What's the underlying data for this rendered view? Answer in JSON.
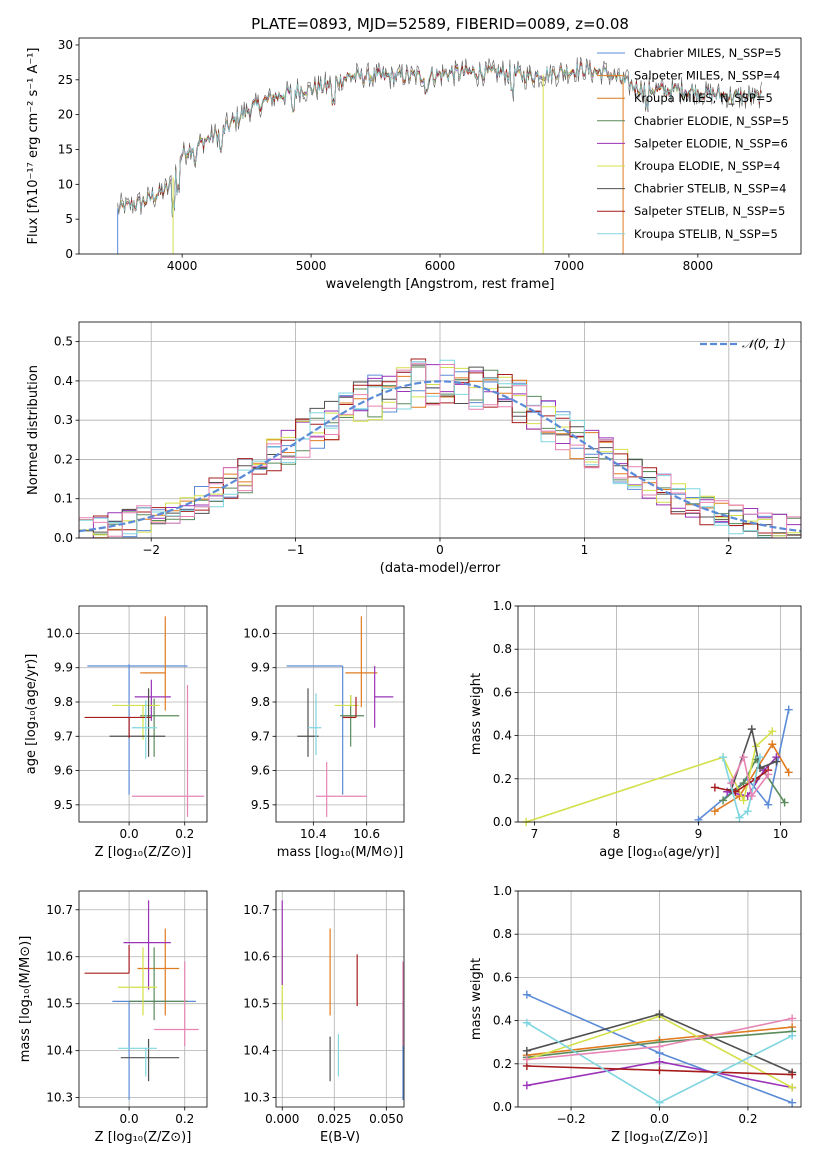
{
  "title": "PLATE=0893, MJD=52589, FIBERID=0089, z=0.08",
  "colors": {
    "chabrier_miles": "#5b8bd6",
    "salpeter_miles": "#e07b20",
    "kroupa_miles": "#d97a1e",
    "chabrier_elodie": "#5a8a5a",
    "salpeter_elodie": "#9a33b8",
    "kroupa_elodie": "#d4e04a",
    "chabrier_stelib": "#505050",
    "salpeter_stelib": "#a61c1c",
    "kroupa_stelib": "#7fd6e0",
    "pink": "#e684b4",
    "normal_curve": "#5b8bd6"
  },
  "chart_data": [
    {
      "id": "spectrum",
      "type": "line",
      "xlabel": "wavelength [Angstrom, rest frame]",
      "ylabel": "Flux [fλ10⁻¹⁷ erg cm⁻² s⁻¹ A⁻¹]",
      "xlim": [
        3200,
        8800
      ],
      "ylim": [
        0,
        31
      ],
      "xticks": [
        "4000",
        "5000",
        "6000",
        "7000",
        "8000"
      ],
      "yticks": [
        "0",
        "5",
        "10",
        "15",
        "20",
        "25",
        "30"
      ],
      "legend_position": "top-right",
      "continuum": [
        [
          3500,
          6.5
        ],
        [
          3700,
          7.5
        ],
        [
          3900,
          9.5
        ],
        [
          3950,
          12
        ],
        [
          4000,
          14.5
        ],
        [
          4100,
          15.5
        ],
        [
          4300,
          17.5
        ],
        [
          4500,
          20.5
        ],
        [
          4700,
          22.5
        ],
        [
          4900,
          23.5
        ],
        [
          5100,
          24
        ],
        [
          5300,
          25.5
        ],
        [
          5500,
          25.5
        ],
        [
          5700,
          25.5
        ],
        [
          5900,
          25.5
        ],
        [
          6100,
          26
        ],
        [
          6300,
          26
        ],
        [
          6500,
          26
        ],
        [
          6700,
          25.5
        ],
        [
          6900,
          26
        ],
        [
          7100,
          26.5
        ],
        [
          7300,
          26
        ],
        [
          7500,
          24
        ],
        [
          7700,
          23.5
        ],
        [
          7900,
          23.5
        ],
        [
          8100,
          23
        ],
        [
          8300,
          22.5
        ],
        [
          8500,
          22.5
        ]
      ],
      "series": [
        {
          "name": "Chabrier MILES, N_SSP=5",
          "color_key": "chabrier_miles"
        },
        {
          "name": "Salpeter MILES, N_SSP=4",
          "color_key": "salpeter_miles"
        },
        {
          "name": "Kroupa MILES, N_SSP=5",
          "color_key": "kroupa_miles"
        },
        {
          "name": "Chabrier ELODIE, N_SSP=5",
          "color_key": "chabrier_elodie"
        },
        {
          "name": "Salpeter ELODIE, N_SSP=6",
          "color_key": "salpeter_elodie"
        },
        {
          "name": "Kroupa ELODIE, N_SSP=4",
          "color_key": "kroupa_elodie"
        },
        {
          "name": "Chabrier STELIB, N_SSP=4",
          "color_key": "chabrier_stelib"
        },
        {
          "name": "Salpeter STELIB, N_SSP=5",
          "color_key": "salpeter_stelib"
        },
        {
          "name": "Kroupa STELIB, N_SSP=5",
          "color_key": "kroupa_stelib"
        }
      ]
    },
    {
      "id": "residuals",
      "type": "line",
      "xlabel": "(data-model)/error",
      "ylabel": "Normed distribution",
      "xlim": [
        -2.5,
        2.5
      ],
      "ylim": [
        0,
        0.55
      ],
      "xticks": [
        "−2",
        "−1",
        "0",
        "1",
        "2"
      ],
      "yticks": [
        "0.0",
        "0.1",
        "0.2",
        "0.3",
        "0.4",
        "0.5"
      ],
      "grid": true,
      "legend": "𝒩(0, 1)",
      "legend_position": "top-right",
      "bin_width": 0.1
    },
    {
      "id": "age_vs_Z",
      "type": "scatter",
      "xlabel": "Z [log₁₀(Z/Z⊙)]",
      "ylabel": "age  [log₁₀(age/yr)]",
      "xlim": [
        -0.18,
        0.28
      ],
      "ylim": [
        9.45,
        10.08
      ],
      "xticks": [
        "0.0",
        "0.2"
      ],
      "yticks": [
        "9.5",
        "9.6",
        "9.7",
        "9.8",
        "9.9",
        "10.0"
      ],
      "grid": true,
      "points": [
        {
          "x": 0.0,
          "y": 9.905,
          "xerr": [
            0.15,
            0.21
          ],
          "yerr": [
            0.375,
            0.005
          ],
          "color_key": "chabrier_miles"
        },
        {
          "x": 0.13,
          "y": 9.885,
          "xerr": [
            0.09,
            0.0
          ],
          "yerr": [
            0.11,
            0.165
          ],
          "color_key": "salpeter_miles"
        },
        {
          "x": 0.09,
          "y": 9.76,
          "xerr": [
            0.05,
            0.09
          ],
          "yerr": [
            0.12,
            0.05
          ],
          "color_key": "chabrier_elodie"
        },
        {
          "x": 0.08,
          "y": 9.815,
          "xerr": [
            0.06,
            0.07
          ],
          "yerr": [
            0.07,
            0.05
          ],
          "color_key": "salpeter_elodie"
        },
        {
          "x": 0.05,
          "y": 9.79,
          "xerr": [
            0.11,
            0.06
          ],
          "yerr": [
            0.1,
            0.0
          ],
          "color_key": "kroupa_elodie"
        },
        {
          "x": 0.07,
          "y": 9.7,
          "xerr": [
            0.14,
            0.06
          ],
          "yerr": [
            0.06,
            0.14
          ],
          "color_key": "chabrier_stelib"
        },
        {
          "x": 0.0,
          "y": 9.755,
          "xerr": [
            0.16,
            0.08
          ],
          "yerr": [
            0.06,
            0.0
          ],
          "color_key": "salpeter_stelib"
        },
        {
          "x": 0.06,
          "y": 9.725,
          "xerr": [
            0.05,
            0.04
          ],
          "yerr": [
            0.09,
            0.08
          ],
          "color_key": "kroupa_stelib"
        },
        {
          "x": 0.21,
          "y": 9.525,
          "xerr": [
            0.2,
            0.06
          ],
          "yerr": [
            0.06,
            0.325
          ],
          "color_key": "pink"
        }
      ]
    },
    {
      "id": "age_vs_mass",
      "type": "scatter",
      "xlabel": "mass [log₁₀(M/M⊙)]",
      "xlim": [
        10.26,
        10.74
      ],
      "ylim": [
        9.45,
        10.08
      ],
      "xticks": [
        "10.4",
        "10.6"
      ],
      "yticks": [
        "9.5",
        "9.6",
        "9.7",
        "9.8",
        "9.9",
        "10.0"
      ],
      "grid": true,
      "points": [
        {
          "x": 10.51,
          "y": 9.905,
          "xerr": [
            0.21,
            0.0
          ],
          "yerr": [
            0.375,
            0.0
          ],
          "color_key": "chabrier_miles"
        },
        {
          "x": 10.58,
          "y": 9.885,
          "xerr": [
            0.06,
            0.06
          ],
          "yerr": [
            0.1,
            0.165
          ],
          "color_key": "salpeter_miles"
        },
        {
          "x": 10.54,
          "y": 9.76,
          "xerr": [
            0.04,
            0.05
          ],
          "yerr": [
            0.09,
            0.06
          ],
          "color_key": "chabrier_elodie"
        },
        {
          "x": 10.63,
          "y": 9.815,
          "xerr": [
            0.0,
            0.07
          ],
          "yerr": [
            0.09,
            0.09
          ],
          "color_key": "salpeter_elodie"
        },
        {
          "x": 10.54,
          "y": 9.79,
          "xerr": [
            0.06,
            0.03
          ],
          "yerr": [
            0.0,
            0.03
          ],
          "color_key": "kroupa_elodie"
        },
        {
          "x": 10.38,
          "y": 9.7,
          "xerr": [
            0.04,
            0.04
          ],
          "yerr": [
            0.06,
            0.14
          ],
          "color_key": "chabrier_stelib"
        },
        {
          "x": 10.56,
          "y": 9.755,
          "xerr": [
            0.05,
            0.0
          ],
          "yerr": [
            0.0,
            0.06
          ],
          "color_key": "salpeter_stelib"
        },
        {
          "x": 10.41,
          "y": 9.725,
          "xerr": [
            0.03,
            0.02
          ],
          "yerr": [
            0.08,
            0.1
          ],
          "color_key": "kroupa_stelib"
        },
        {
          "x": 10.45,
          "y": 9.525,
          "xerr": [
            0.04,
            0.15
          ],
          "yerr": [
            0.06,
            0.1
          ],
          "color_key": "pink"
        }
      ]
    },
    {
      "id": "weight_vs_age",
      "type": "line",
      "xlabel": "age  [log₁₀(age/yr)]",
      "ylabel": "mass weight",
      "xlim": [
        6.8,
        10.25
      ],
      "ylim": [
        0,
        1.0
      ],
      "xticks": [
        "7",
        "8",
        "9",
        "10"
      ],
      "yticks": [
        "0.0",
        "0.2",
        "0.4",
        "0.6",
        "0.8",
        "1.0"
      ],
      "grid": true,
      "series": [
        {
          "color_key": "chabrier_miles",
          "x": [
            9.0,
            9.6,
            9.85,
            10.1
          ],
          "y": [
            0.01,
            0.2,
            0.08,
            0.52
          ]
        },
        {
          "color_key": "salpeter_miles",
          "x": [
            9.2,
            9.5,
            9.9,
            10.1
          ],
          "y": [
            0.05,
            0.12,
            0.36,
            0.23
          ]
        },
        {
          "color_key": "chabrier_elodie",
          "x": [
            9.3,
            9.55,
            9.7,
            10.05
          ],
          "y": [
            0.1,
            0.18,
            0.29,
            0.09
          ]
        },
        {
          "color_key": "salpeter_elodie",
          "x": [
            9.35,
            9.6,
            9.8,
            9.95
          ],
          "y": [
            0.14,
            0.12,
            0.24,
            0.3
          ]
        },
        {
          "color_key": "kroupa_elodie",
          "x": [
            6.9,
            9.3,
            9.55,
            9.7,
            9.9
          ],
          "y": [
            0.0,
            0.3,
            0.1,
            0.35,
            0.42
          ]
        },
        {
          "color_key": "chabrier_stelib",
          "x": [
            9.4,
            9.65,
            9.75,
            9.95
          ],
          "y": [
            0.15,
            0.43,
            0.25,
            0.28
          ]
        },
        {
          "color_key": "salpeter_stelib",
          "x": [
            9.2,
            9.45,
            9.7,
            9.85
          ],
          "y": [
            0.16,
            0.14,
            0.2,
            0.24
          ]
        },
        {
          "color_key": "kroupa_stelib",
          "x": [
            9.3,
            9.5,
            9.6,
            9.75
          ],
          "y": [
            0.3,
            0.02,
            0.05,
            0.3
          ]
        },
        {
          "color_key": "pink",
          "x": [
            9.4,
            9.55,
            9.65,
            9.85
          ],
          "y": [
            0.18,
            0.3,
            0.12,
            0.22
          ]
        }
      ]
    },
    {
      "id": "mass_vs_Z",
      "type": "scatter",
      "xlabel": "Z [log₁₀(Z/Z⊙)]",
      "ylabel": "mass [log₁₀(M/M⊙)]",
      "xlim": [
        -0.18,
        0.28
      ],
      "ylim": [
        10.28,
        10.74
      ],
      "xticks": [
        "0.0",
        "0.2"
      ],
      "yticks": [
        "10.3",
        "10.4",
        "10.5",
        "10.6",
        "10.7"
      ],
      "grid": true,
      "points": [
        {
          "x": 0.0,
          "y": 10.505,
          "xerr": [
            0.06,
            0.24
          ],
          "yerr": [
            0.21,
            0.0
          ],
          "color_key": "chabrier_miles"
        },
        {
          "x": 0.13,
          "y": 10.575,
          "xerr": [
            0.1,
            0.05
          ],
          "yerr": [
            0.1,
            0.085
          ],
          "color_key": "salpeter_miles"
        },
        {
          "x": 0.09,
          "y": 10.505,
          "xerr": [
            0.09,
            0.12
          ],
          "yerr": [
            0.04,
            0.115
          ],
          "color_key": "chabrier_elodie"
        },
        {
          "x": 0.07,
          "y": 10.63,
          "xerr": [
            0.09,
            0.08
          ],
          "yerr": [
            0.1,
            0.09
          ],
          "color_key": "salpeter_elodie"
        },
        {
          "x": 0.05,
          "y": 10.535,
          "xerr": [
            0.09,
            0.05
          ],
          "yerr": [
            0.06,
            0.085
          ],
          "color_key": "kroupa_elodie"
        },
        {
          "x": 0.07,
          "y": 10.385,
          "xerr": [
            0.1,
            0.11
          ],
          "yerr": [
            0.05,
            0.04
          ],
          "color_key": "chabrier_stelib"
        },
        {
          "x": 0.0,
          "y": 10.565,
          "xerr": [
            0.16,
            0.0
          ],
          "yerr": [
            0.0,
            0.06
          ],
          "color_key": "salpeter_stelib"
        },
        {
          "x": 0.06,
          "y": 10.405,
          "xerr": [
            0.1,
            0.04
          ],
          "yerr": [
            0.06,
            0.0
          ],
          "color_key": "kroupa_stelib"
        },
        {
          "x": 0.2,
          "y": 10.445,
          "xerr": [
            0.11,
            0.05
          ],
          "yerr": [
            0.035,
            0.145
          ],
          "color_key": "pink"
        }
      ]
    },
    {
      "id": "mass_vs_ebv",
      "type": "scatter",
      "xlabel": "E(B-V)",
      "xlim": [
        -0.003,
        0.0585
      ],
      "ylim": [
        10.28,
        10.74
      ],
      "xticks": [
        "0.000",
        "0.025",
        "0.050"
      ],
      "yticks": [
        "10.3",
        "10.4",
        "10.5",
        "10.6",
        "10.7"
      ],
      "grid": true,
      "points": [
        {
          "x": 0.0,
          "y": 10.505,
          "yerr": [
            0.04,
            0.115
          ],
          "color_key": "kroupa_elodie"
        },
        {
          "x": 0.0,
          "y": 10.63,
          "yerr": [
            0.09,
            0.09
          ],
          "color_key": "salpeter_elodie"
        },
        {
          "x": 0.023,
          "y": 10.575,
          "yerr": [
            0.1,
            0.085
          ],
          "color_key": "salpeter_miles"
        },
        {
          "x": 0.023,
          "y": 10.385,
          "yerr": [
            0.05,
            0.045
          ],
          "color_key": "chabrier_stelib"
        },
        {
          "x": 0.027,
          "y": 10.405,
          "yerr": [
            0.06,
            0.03
          ],
          "color_key": "kroupa_stelib"
        },
        {
          "x": 0.036,
          "y": 10.565,
          "yerr": [
            0.07,
            0.04
          ],
          "color_key": "salpeter_stelib"
        },
        {
          "x": 0.058,
          "y": 10.505,
          "yerr": [
            0.21,
            0.0
          ],
          "color_key": "chabrier_miles"
        },
        {
          "x": 0.058,
          "y": 10.445,
          "yerr": [
            0.035,
            0.145
          ],
          "color_key": "pink"
        }
      ]
    },
    {
      "id": "weight_vs_Z",
      "type": "line",
      "xlabel": "Z [log₁₀(Z/Z⊙)]",
      "ylabel": "mass weight",
      "xlim": [
        -0.32,
        0.32
      ],
      "ylim": [
        0,
        1.0
      ],
      "xticks": [
        "−0.2",
        "0.0",
        "0.2"
      ],
      "yticks": [
        "0.0",
        "0.2",
        "0.4",
        "0.6",
        "0.8",
        "1.0"
      ],
      "grid": true,
      "series": [
        {
          "color_key": "chabrier_miles",
          "x": [
            -0.3,
            0.0,
            0.3
          ],
          "y": [
            0.52,
            0.25,
            0.02
          ]
        },
        {
          "color_key": "salpeter_miles",
          "x": [
            -0.3,
            0.0,
            0.3
          ],
          "y": [
            0.24,
            0.31,
            0.37
          ]
        },
        {
          "color_key": "chabrier_elodie",
          "x": [
            -0.3,
            0.0,
            0.3
          ],
          "y": [
            0.23,
            0.3,
            0.35
          ]
        },
        {
          "color_key": "salpeter_elodie",
          "x": [
            -0.3,
            0.0,
            0.3
          ],
          "y": [
            0.1,
            0.21,
            0.09
          ]
        },
        {
          "color_key": "kroupa_elodie",
          "x": [
            -0.3,
            0.0,
            0.3
          ],
          "y": [
            0.22,
            0.42,
            0.09
          ]
        },
        {
          "color_key": "chabrier_stelib",
          "x": [
            -0.3,
            0.0,
            0.3
          ],
          "y": [
            0.26,
            0.43,
            0.16
          ]
        },
        {
          "color_key": "salpeter_stelib",
          "x": [
            -0.3,
            0.0,
            0.3
          ],
          "y": [
            0.19,
            0.17,
            0.15
          ]
        },
        {
          "color_key": "kroupa_stelib",
          "x": [
            -0.3,
            0.0,
            0.3
          ],
          "y": [
            0.39,
            0.02,
            0.33
          ]
        },
        {
          "color_key": "pink",
          "x": [
            -0.3,
            0.0,
            0.3
          ],
          "y": [
            0.22,
            0.28,
            0.41
          ]
        }
      ]
    }
  ]
}
